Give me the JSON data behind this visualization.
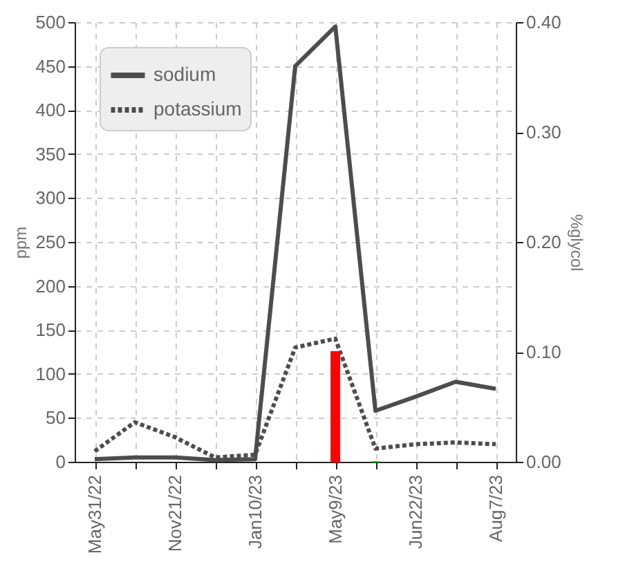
{
  "chart_data": {
    "type": "line",
    "ylabel": "ppm",
    "y2label": "%glycol",
    "categories": [
      "May31/22",
      null,
      "Nov21/22",
      null,
      "Jan10/23",
      null,
      "May9/23",
      null,
      "Jun22/23",
      null,
      "Aug7/23"
    ],
    "series": [
      {
        "name": "sodium",
        "color": "#4d4d4d",
        "line_style": "solid",
        "values": [
          3,
          5,
          5,
          2,
          3,
          450,
          495,
          58,
          74,
          91,
          83
        ]
      },
      {
        "name": "potassium",
        "color": "#4d4d4d",
        "line_style": "dotted",
        "values": [
          12,
          45,
          28,
          5,
          8,
          130,
          140,
          15,
          20,
          22,
          20
        ]
      },
      {
        "type": "bar",
        "axis": "y2",
        "colors": [
          null,
          null,
          null,
          null,
          null,
          null,
          "#ff0000",
          "#00cc00",
          null,
          null,
          null
        ],
        "values": [
          null,
          null,
          null,
          null,
          null,
          null,
          0.1,
          0,
          null,
          null,
          null
        ]
      }
    ],
    "ylim": [
      0,
      500
    ],
    "yticks": [
      0,
      50,
      100,
      150,
      200,
      250,
      300,
      350,
      400,
      450,
      500
    ],
    "y2lim": [
      0,
      0.4
    ],
    "y2ticks": [
      {
        "value": 0,
        "label": "0.00"
      },
      {
        "value": 0.1,
        "label": "0.10"
      },
      {
        "value": 0.2,
        "label": "0.20"
      },
      {
        "value": 0.3,
        "label": "0.30"
      },
      {
        "value": 0.4,
        "label": "0.40"
      }
    ],
    "grid": true,
    "legend": "top left",
    "marker": "none"
  }
}
